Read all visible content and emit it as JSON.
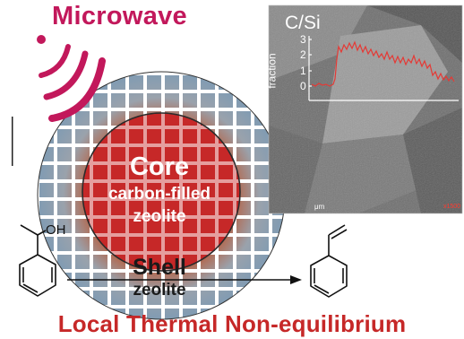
{
  "microwave_label": "Microwave",
  "core": {
    "title": "Core",
    "line1": "carbon-filled",
    "line2": "zeolite"
  },
  "shell": {
    "title": "Shell",
    "subtitle": "zeolite"
  },
  "bottom_title": "Local Thermal Non-equilibrium",
  "reactant_group": "OH",
  "inset": {
    "title": "C/Si",
    "ylabel": "fraction",
    "yticks": [
      "3",
      "2",
      "1",
      "0"
    ],
    "unit_label": "μm",
    "mag_label": "x1500"
  },
  "colors": {
    "microwave": "#c2185b",
    "core": "#c62828",
    "shell_grid": "#8aa3b8",
    "profile": "#e53935",
    "bottom_title": "#c62828"
  }
}
